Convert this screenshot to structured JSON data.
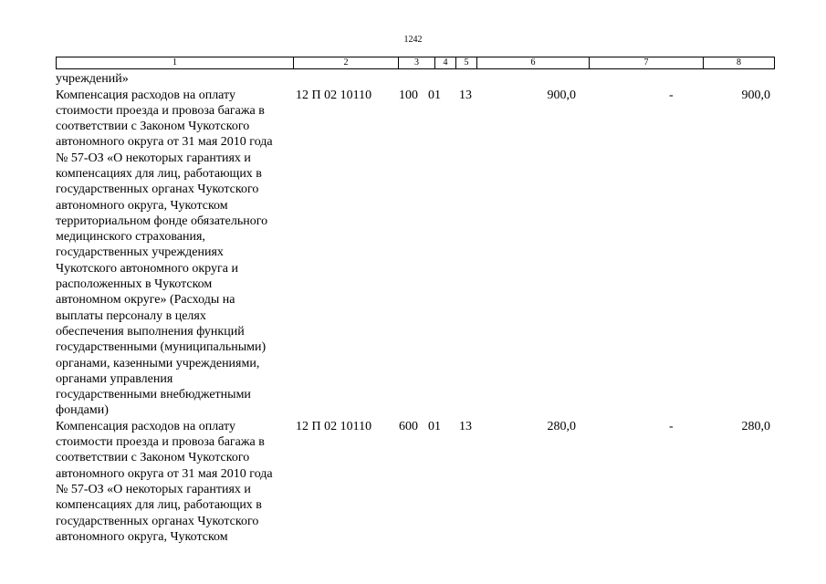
{
  "page_number": "1242",
  "header_columns": [
    "1",
    "2",
    "3",
    "4",
    "5",
    "6",
    "7",
    "8"
  ],
  "continuation_text": "учреждений»",
  "rows": [
    {
      "description_lines": [
        "Компенсация расходов на оплату",
        "стоимости проезда и провоза багажа в",
        "соответствии с Законом Чукотского",
        "автономного округа от 31 мая 2010 года",
        "№ 57-ОЗ «О некоторых гарантиях и",
        "компенсациях для лиц, работающих в",
        "государственных органах Чукотского",
        "автономного округа, Чукотском",
        "территориальном фонде обязательного",
        "медицинского страхования,",
        "государственных учреждениях",
        "Чукотского автономного округа и",
        "расположенных в Чукотском",
        "автономном округе» (Расходы на",
        "выплаты персоналу в целях",
        "обеспечения выполнения функций",
        "государственными (муниципальными)",
        "органами, казенными учреждениями,",
        "органами управления",
        "государственными внебюджетными",
        "фондами)"
      ],
      "code": "12 П 02 10110",
      "c3": "100",
      "c4": "01",
      "c5": "13",
      "c6": "900,0",
      "c7": "-",
      "c8": "900,0"
    },
    {
      "description_lines": [
        "Компенсация расходов на оплату",
        "стоимости проезда и провоза багажа в",
        "соответствии с Законом Чукотского",
        "автономного округа от 31 мая 2010 года",
        "№ 57-ОЗ «О некоторых гарантиях и",
        "компенсациях для лиц, работающих в",
        "государственных органах Чукотского",
        "автономного округа, Чукотском"
      ],
      "code": "12 П 02 10110",
      "c3": "600",
      "c4": "01",
      "c5": "13",
      "c6": "280,0",
      "c7": "-",
      "c8": "280,0"
    }
  ]
}
